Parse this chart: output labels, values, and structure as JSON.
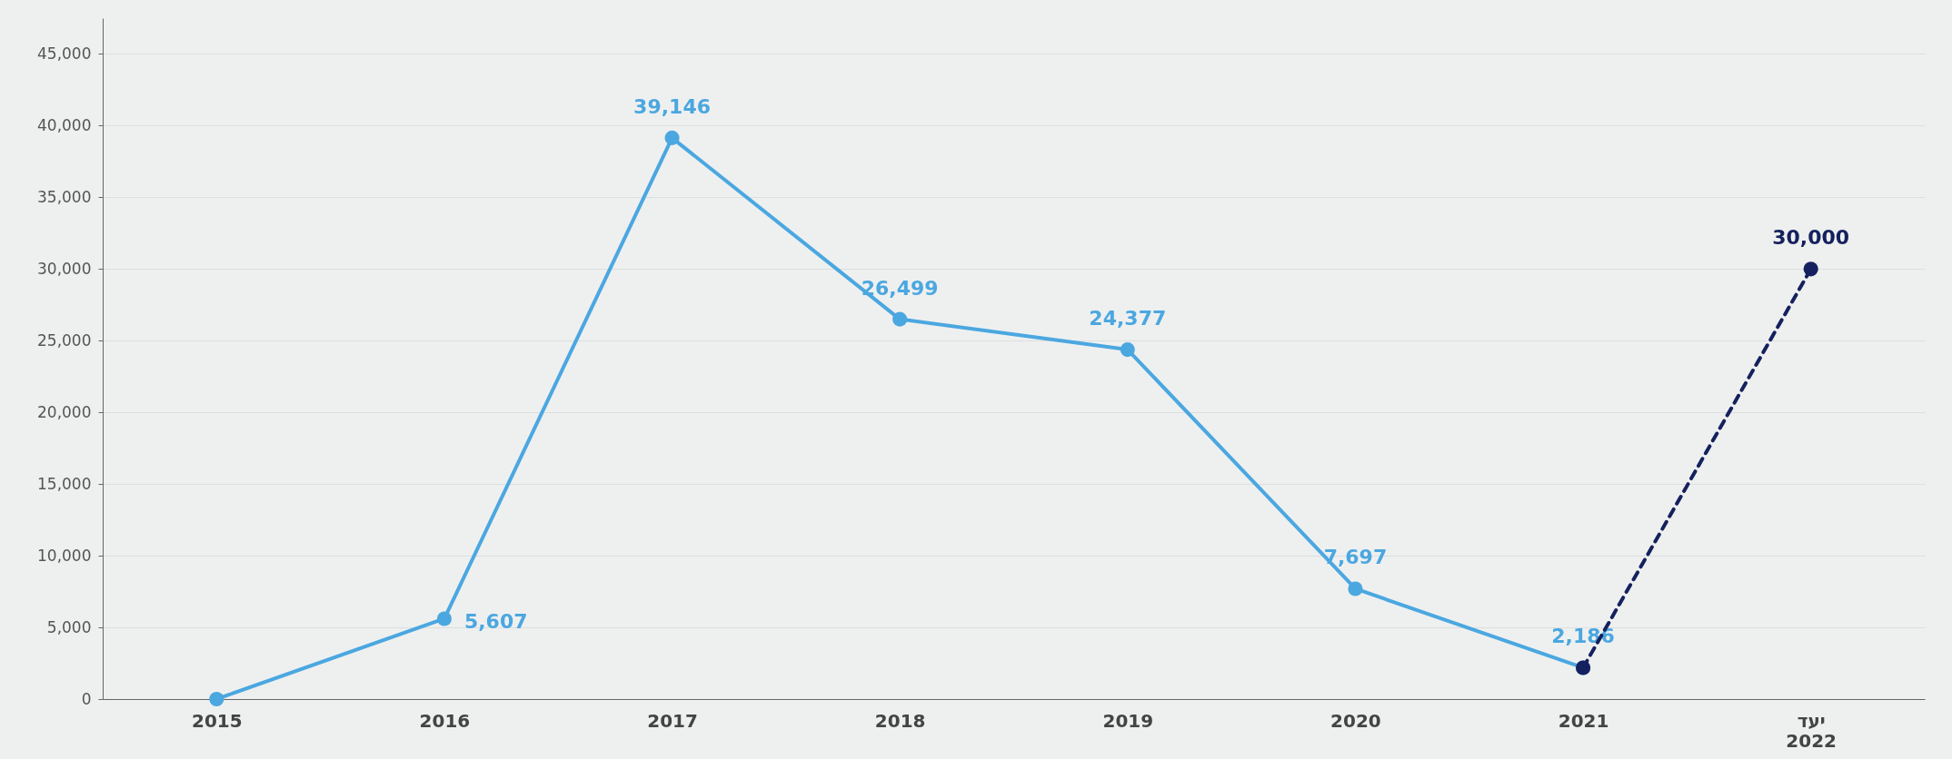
{
  "chart_data": {
    "type": "line",
    "categories": [
      "2015",
      "2016",
      "2017",
      "2018",
      "2019",
      "2020",
      "2021",
      "יעד 2022"
    ],
    "series": [
      {
        "color": "#4ba7e0",
        "line_style": "solid",
        "values": [
          0,
          5607,
          39146,
          26499,
          24377,
          7697,
          2186,
          null
        ],
        "value_labels": [
          null,
          "5,607",
          "39,146",
          "26,499",
          "24,377",
          "7,697",
          "2,186",
          null
        ]
      },
      {
        "color": "#15215e",
        "line_style": "dashed",
        "values": [
          null,
          null,
          null,
          null,
          null,
          null,
          2186,
          30000
        ],
        "value_labels": [
          null,
          null,
          null,
          null,
          null,
          null,
          null,
          "30,000"
        ]
      }
    ],
    "ylim": [
      0,
      47500
    ],
    "yticks": [
      0,
      {
        "value": 5000,
        "label": "5,000"
      },
      {
        "value": 10000,
        "label": "10,000"
      },
      {
        "value": 15000,
        "label": "15,000"
      },
      {
        "value": 20000,
        "label": "20,000"
      },
      {
        "value": 25000,
        "label": "25,000"
      },
      {
        "value": 30000,
        "label": "30,000"
      },
      {
        "value": 35000,
        "label": "35,000"
      },
      {
        "value": 40000,
        "label": "40,000"
      },
      {
        "value": 45000,
        "label": "45,000"
      }
    ],
    "grid": "y",
    "marker": "circle"
  }
}
